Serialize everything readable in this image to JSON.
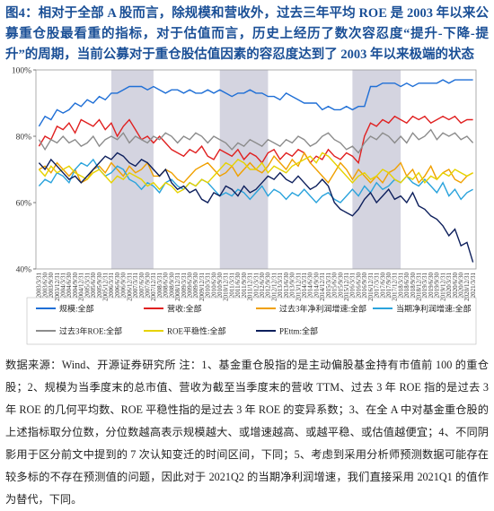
{
  "chart_data": {
    "type": "line",
    "title": "图4：相对于全部 A 股而言，除规模和营收外，过去三年平均 ROE 是 2003 年以来公募重仓股最看重的指标，对于估值而言，历史上经历了数次容忍度“提升-下降-提升”的周期，当前公募对于重仓股估值因素的容忍度达到了 2003 年以来极端的状态",
    "note": "数据来源：Wind、开源证券研究所 注：1、基金重仓股指的是主动偏股基金持有市值前 100 的重仓股；2、规模为当季度末的总市值、营收为截至当季度末的营收 TTM、过去 3 年 ROE 指的是过去 3 年 ROE 的几何平均数、ROE 平稳性指的是过去 3 年 ROE 的变异系数；3、在全 A 中对基金重仓股的上述指标取分位数，分位数越高表示规模越大、或增速越高、或越平稳、或估值越便宜；4、不同阴影用于区分前文中提到的 7 次认知变迁的时间区间，下同；5、考虑到采用分析师预测数据可能存在较多标的不存在预测值的问题，因此对于 2021Q2 的当期净利润增速，我们直接采用 2021Q1 的值作为替代，下同。",
    "categories": [
      "2003/3/31",
      "2003/6/30",
      "2003/9/30",
      "2003/12/31",
      "2004/3/31",
      "2004/6/30",
      "2004/9/30",
      "2004/12/31",
      "2005/3/31",
      "2005/6/30",
      "2005/9/30",
      "2005/12/31",
      "2006/3/31",
      "2006/6/30",
      "2006/9/30",
      "2006/12/31",
      "2007/3/31",
      "2007/6/30",
      "2007/9/30",
      "2007/12/31",
      "2008/3/31",
      "2008/6/30",
      "2008/9/30",
      "2008/12/31",
      "2009/3/31",
      "2009/6/30",
      "2009/9/30",
      "2009/12/31",
      "2010/3/31",
      "2010/6/30",
      "2010/9/30",
      "2010/12/31",
      "2011/3/31",
      "2011/6/30",
      "2011/9/30",
      "2011/12/31",
      "2012/3/31",
      "2012/6/30",
      "2012/9/30",
      "2012/12/31",
      "2013/3/31",
      "2013/6/30",
      "2013/9/30",
      "2013/12/31",
      "2014/3/31",
      "2014/6/30",
      "2014/9/30",
      "2014/12/31",
      "2015/3/31",
      "2015/6/30",
      "2015/9/30",
      "2015/12/31",
      "2016/3/31",
      "2016/6/30",
      "2016/9/30",
      "2016/12/31",
      "2017/3/31",
      "2017/6/30",
      "2017/9/30",
      "2017/12/31",
      "2018/3/31",
      "2018/6/30",
      "2018/9/30",
      "2018/12/31",
      "2019/3/31",
      "2019/6/30",
      "2019/9/30",
      "2019/12/31",
      "2020/3/31",
      "2020/6/30",
      "2020/9/30",
      "2020/12/31",
      "2021/3/31"
    ],
    "ylim": [
      40,
      100
    ],
    "yticks": [
      {
        "value": 40,
        "label": "40%"
      },
      {
        "value": 60,
        "label": "60%"
      },
      {
        "value": 80,
        "label": "80%"
      },
      {
        "value": 100,
        "label": "100%"
      }
    ],
    "grid": false,
    "shaded_ranges": [
      [
        "2006/3/31",
        "2007/12/31"
      ],
      [
        "2010/9/30",
        "2012/9/30"
      ],
      [
        "2016/3/31",
        "2018/3/31"
      ]
    ],
    "shade_color": "#d4d4e0",
    "series": [
      {
        "name": "规模:全部",
        "color": "#1f6fd6",
        "values": [
          83,
          86,
          85,
          88,
          87,
          88,
          90,
          89,
          91,
          90,
          92,
          91,
          93,
          93,
          94,
          95,
          95,
          95,
          94,
          95,
          94,
          93,
          94,
          94,
          93,
          94,
          93,
          93,
          94,
          93,
          94,
          93,
          92,
          93,
          93,
          94,
          93,
          93,
          92,
          92,
          91,
          93,
          92,
          91,
          90,
          90,
          90,
          88,
          89,
          88,
          88,
          89,
          88,
          89,
          89,
          95,
          95,
          96,
          96,
          96,
          95,
          96,
          95,
          96,
          96,
          96,
          96,
          97,
          96,
          97,
          97,
          97,
          97
        ]
      },
      {
        "name": "营收:全部",
        "color": "#e02020",
        "values": [
          77,
          80,
          79,
          83,
          82,
          84,
          81,
          85,
          84,
          83,
          85,
          82,
          84,
          80,
          83,
          85,
          82,
          79,
          80,
          78,
          80,
          78,
          76,
          75,
          74,
          76,
          75,
          77,
          74,
          73,
          76,
          75,
          74,
          76,
          73,
          75,
          74,
          72,
          75,
          76,
          73,
          75,
          74,
          76,
          75,
          72,
          74,
          73,
          76,
          74,
          73,
          75,
          74,
          72,
          80,
          84,
          83,
          85,
          84,
          86,
          85,
          84,
          86,
          85,
          86,
          84,
          85,
          86,
          85,
          86,
          84,
          85,
          85
        ]
      },
      {
        "name": "过去3年净利润增速:全部",
        "color": "#f0a000",
        "values": [
          70,
          71,
          69,
          72,
          70,
          68,
          70,
          66,
          67,
          70,
          71,
          69,
          72,
          70,
          68,
          71,
          69,
          70,
          72,
          68,
          68,
          70,
          69,
          67,
          66,
          68,
          70,
          71,
          72,
          70,
          68,
          69,
          71,
          68,
          70,
          72,
          70,
          69,
          71,
          74,
          72,
          70,
          73,
          71,
          75,
          72,
          70,
          68,
          66,
          69,
          72,
          70,
          67,
          70,
          68,
          66,
          68,
          66,
          69,
          70,
          72,
          68,
          70,
          66,
          68,
          71,
          67,
          69,
          70,
          67,
          66,
          68,
          69
        ]
      },
      {
        "name": "当期净利润增速:全部",
        "color": "#2aa3dc",
        "values": [
          65,
          67,
          66,
          69,
          68,
          66,
          70,
          72,
          71,
          73,
          70,
          68,
          69,
          71,
          70,
          67,
          66,
          64,
          66,
          65,
          63,
          66,
          67,
          65,
          64,
          66,
          65,
          67,
          66,
          64,
          62,
          63,
          62,
          64,
          63,
          61,
          63,
          65,
          62,
          64,
          63,
          61,
          63,
          62,
          64,
          62,
          60,
          62,
          63,
          61,
          60,
          62,
          64,
          62,
          65,
          63,
          66,
          64,
          65,
          67,
          66,
          68,
          66,
          65,
          67,
          65,
          63,
          66,
          62,
          64,
          61,
          63,
          64
        ]
      },
      {
        "name": "过去3年ROE:全部",
        "color": "#8c8c8c",
        "values": [
          79,
          76,
          79,
          78,
          80,
          78,
          79,
          77,
          78,
          80,
          77,
          79,
          80,
          79,
          81,
          78,
          80,
          79,
          78,
          80,
          79,
          81,
          80,
          78,
          80,
          79,
          81,
          80,
          78,
          80,
          79,
          78,
          76,
          78,
          77,
          79,
          78,
          77,
          79,
          78,
          77,
          79,
          78,
          80,
          79,
          77,
          78,
          80,
          81,
          79,
          78,
          76,
          77,
          75,
          78,
          80,
          79,
          81,
          80,
          78,
          80,
          78,
          81,
          79,
          80,
          82,
          79,
          81,
          80,
          81,
          79,
          80,
          78
        ]
      },
      {
        "name": "ROE平稳性:全部",
        "color": "#e6d200",
        "values": [
          70,
          68,
          71,
          69,
          70,
          71,
          69,
          68,
          67,
          69,
          70,
          68,
          66,
          68,
          67,
          69,
          68,
          67,
          65,
          66,
          64,
          66,
          65,
          63,
          64,
          66,
          65,
          67,
          66,
          68,
          70,
          72,
          71,
          73,
          72,
          70,
          70,
          72,
          69,
          71,
          70,
          69,
          71,
          72,
          73,
          74,
          72,
          75,
          74,
          72,
          70,
          68,
          66,
          68,
          69,
          67,
          68,
          70,
          69,
          67,
          66,
          68,
          67,
          69,
          66,
          68,
          67,
          69,
          68,
          70,
          69,
          68,
          69
        ]
      },
      {
        "name": "PEttm:全部",
        "color": "#0d1f5c",
        "values": [
          72,
          70,
          73,
          71,
          69,
          67,
          68,
          66,
          68,
          70,
          72,
          74,
          73,
          75,
          74,
          72,
          71,
          73,
          72,
          70,
          68,
          70,
          66,
          64,
          65,
          63,
          64,
          61,
          60,
          63,
          62,
          65,
          64,
          62,
          65,
          63,
          64,
          66,
          68,
          67,
          69,
          67,
          66,
          68,
          66,
          64,
          65,
          67,
          65,
          60,
          58,
          57,
          56,
          58,
          61,
          63,
          60,
          62,
          64,
          61,
          62,
          60,
          63,
          59,
          58,
          56,
          55,
          53,
          50,
          52,
          47,
          48,
          42
        ]
      }
    ]
  }
}
